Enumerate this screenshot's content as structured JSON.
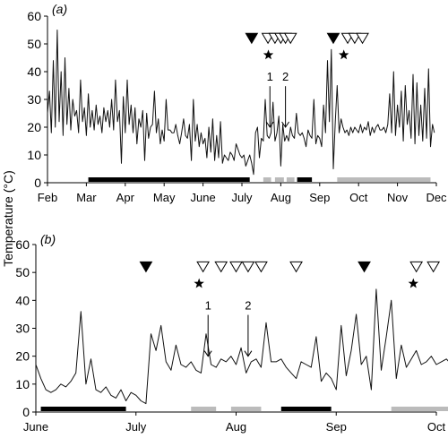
{
  "figure": {
    "ylabel": "Temperature (°C)"
  },
  "chart_data": [
    {
      "type": "line",
      "panel_label": "(a)",
      "ylim": [
        0,
        60
      ],
      "yticks": [
        0,
        10,
        20,
        30,
        40,
        50,
        60
      ],
      "xticklabels": [
        "Feb",
        "Mar",
        "Apr",
        "May",
        "June",
        "July",
        "Aug",
        "Sep",
        "Oct",
        "Nov",
        "Dec"
      ],
      "xrange_months": [
        0,
        10
      ],
      "grid": false,
      "annotations": [
        {
          "text": "1",
          "x": 5.72,
          "arrow_from": 38,
          "arrow_to": 20
        },
        {
          "text": "2",
          "x": 6.12,
          "arrow_from": 38,
          "arrow_to": 20
        }
      ],
      "markers": {
        "filled_triangle": [
          5.25,
          7.35
        ],
        "open_triangle": [
          5.67,
          5.85,
          6.0,
          6.12,
          6.25,
          7.72,
          7.9,
          8.1
        ],
        "star": [
          5.68,
          7.62
        ]
      },
      "bars_black": [
        [
          1.05,
          5.2
        ],
        [
          6.42,
          6.8
        ]
      ],
      "bars_gray": [
        [
          5.55,
          5.75
        ],
        [
          5.85,
          6.08
        ],
        [
          6.15,
          6.35
        ],
        [
          7.45,
          9.85
        ]
      ],
      "series": [
        {
          "x": [
            0.0,
            0.05,
            0.1,
            0.15,
            0.2,
            0.25,
            0.3,
            0.35,
            0.4,
            0.45,
            0.5,
            0.55,
            0.6,
            0.65,
            0.7,
            0.75,
            0.8,
            0.85,
            0.9,
            0.95,
            1.0,
            1.05,
            1.1,
            1.15,
            1.2,
            1.25,
            1.3,
            1.35,
            1.4,
            1.45,
            1.5,
            1.55,
            1.6,
            1.65,
            1.7,
            1.75,
            1.8,
            1.85,
            1.9,
            1.95,
            2.0,
            2.05,
            2.1,
            2.15,
            2.2,
            2.25,
            2.3,
            2.35,
            2.4,
            2.45,
            2.5,
            2.55,
            2.6,
            2.65,
            2.7,
            2.75,
            2.8,
            2.85,
            2.9,
            2.95,
            3.0,
            3.05,
            3.1,
            3.15,
            3.2,
            3.25,
            3.3,
            3.35,
            3.4,
            3.45,
            3.5,
            3.55,
            3.6,
            3.65,
            3.7,
            3.75,
            3.8,
            3.85,
            3.9,
            3.95,
            4.0,
            4.05,
            4.1,
            4.15,
            4.2,
            4.25,
            4.3,
            4.35,
            4.4,
            4.45,
            4.5,
            4.55,
            4.6,
            4.65,
            4.7,
            4.75,
            4.8,
            4.85,
            4.9,
            4.95,
            5.0,
            5.05,
            5.1,
            5.15,
            5.2,
            5.25,
            5.3,
            5.35,
            5.4,
            5.45,
            5.5,
            5.55,
            5.6,
            5.65,
            5.7,
            5.75,
            5.8,
            5.85,
            5.9,
            5.95,
            6.0,
            6.05,
            6.1,
            6.15,
            6.2,
            6.25,
            6.3,
            6.35,
            6.4,
            6.45,
            6.5,
            6.55,
            6.6,
            6.65,
            6.7,
            6.75,
            6.8,
            6.85,
            6.9,
            6.95,
            7.0,
            7.05,
            7.1,
            7.15,
            7.2,
            7.25,
            7.3,
            7.35,
            7.4,
            7.45,
            7.5,
            7.55,
            7.6,
            7.65,
            7.7,
            7.75,
            7.8,
            7.85,
            7.9,
            7.95,
            8.0,
            8.05,
            8.1,
            8.15,
            8.2,
            8.25,
            8.3,
            8.35,
            8.4,
            8.45,
            8.5,
            8.55,
            8.6,
            8.65,
            8.7,
            8.75,
            8.8,
            8.85,
            8.9,
            8.95,
            9.0,
            9.05,
            9.1,
            9.15,
            9.2,
            9.25,
            9.3,
            9.35,
            9.4,
            9.45,
            9.5,
            9.55,
            9.6,
            9.65,
            9.7,
            9.75,
            9.8,
            9.85,
            9.9,
            9.95
          ],
          "y": [
            25,
            33,
            18,
            44,
            20,
            55,
            22,
            40,
            17,
            45,
            21,
            34,
            19,
            30,
            24,
            26,
            18,
            37,
            22,
            27,
            17,
            32,
            20,
            26,
            19,
            28,
            21,
            24,
            18,
            27,
            22,
            26,
            20,
            30,
            19,
            37,
            22,
            26,
            7,
            31,
            18,
            37,
            21,
            28,
            18,
            27,
            14,
            23,
            20,
            26,
            8,
            25,
            16,
            20,
            21,
            33,
            18,
            23,
            14,
            19,
            15,
            30,
            19,
            19,
            18,
            18,
            21,
            17,
            14,
            18,
            23,
            17,
            16,
            21,
            8,
            30,
            15,
            21,
            13,
            18,
            14,
            16,
            9,
            20,
            11,
            23,
            8,
            17,
            9,
            22,
            7,
            10,
            9,
            8,
            11,
            10,
            8,
            14,
            12,
            10,
            9,
            10,
            6,
            8,
            10,
            7,
            3,
            18,
            20,
            9,
            16,
            15,
            30,
            17,
            16,
            18,
            29,
            15,
            18,
            24,
            6,
            21,
            15,
            17,
            15,
            20,
            17,
            16,
            25,
            18,
            17,
            18,
            16,
            13,
            19,
            17,
            16,
            30,
            14,
            17,
            16,
            13,
            28,
            18,
            44,
            22,
            48,
            5,
            22,
            35,
            18,
            23,
            20,
            18,
            19,
            17,
            20,
            18,
            20,
            19,
            18,
            21,
            18,
            20,
            19,
            22,
            17,
            20,
            18,
            20,
            21,
            19,
            19,
            20,
            18,
            21,
            32,
            18,
            40,
            17,
            28,
            20,
            33,
            15,
            35,
            21,
            26,
            16,
            39,
            14,
            36,
            17,
            28,
            15,
            34,
            16,
            41,
            13,
            21,
            18
          ]
        }
      ]
    },
    {
      "type": "line",
      "panel_label": "(b)",
      "ylim": [
        0,
        60
      ],
      "yticks": [
        0,
        10,
        20,
        30,
        40,
        50,
        60
      ],
      "xticklabels": [
        "June",
        "July",
        "Aug",
        "Sep",
        "Oct"
      ],
      "xrange_months": [
        0,
        4
      ],
      "grid": false,
      "annotations": [
        {
          "text": "1",
          "x": 1.72,
          "arrow_from": 38,
          "arrow_to": 20
        },
        {
          "text": "2",
          "x": 2.12,
          "arrow_from": 38,
          "arrow_to": 20
        }
      ],
      "markers": {
        "filled_triangle": [
          1.1,
          3.28
        ],
        "open_triangle": [
          1.67,
          1.85,
          2.0,
          2.12,
          2.25,
          2.6,
          3.8,
          3.97,
          4.25
        ],
        "star": [
          1.63,
          3.77
        ]
      },
      "bars_black": [
        [
          0.05,
          0.9
        ],
        [
          2.45,
          2.95
        ]
      ],
      "bars_gray": [
        [
          1.55,
          1.8
        ],
        [
          1.95,
          2.25
        ],
        [
          3.55,
          4.45
        ]
      ],
      "series": [
        {
          "x": [
            0.0,
            0.05,
            0.1,
            0.15,
            0.2,
            0.25,
            0.3,
            0.35,
            0.4,
            0.45,
            0.5,
            0.55,
            0.6,
            0.65,
            0.7,
            0.75,
            0.8,
            0.85,
            0.9,
            0.95,
            1.0,
            1.05,
            1.1,
            1.15,
            1.2,
            1.25,
            1.3,
            1.35,
            1.4,
            1.45,
            1.5,
            1.55,
            1.6,
            1.65,
            1.7,
            1.75,
            1.8,
            1.85,
            1.9,
            1.95,
            2.0,
            2.05,
            2.1,
            2.15,
            2.2,
            2.25,
            2.3,
            2.35,
            2.4,
            2.45,
            2.5,
            2.55,
            2.6,
            2.65,
            2.7,
            2.75,
            2.8,
            2.85,
            2.9,
            2.95,
            3.0,
            3.05,
            3.1,
            3.15,
            3.2,
            3.25,
            3.3,
            3.35,
            3.4,
            3.45,
            3.5,
            3.55,
            3.6,
            3.65,
            3.7,
            3.75,
            3.8,
            3.85,
            3.9,
            3.95,
            4.0,
            4.05,
            4.1,
            4.15,
            4.2,
            4.25,
            4.3,
            4.35,
            4.4,
            4.45,
            4.5
          ],
          "y": [
            17,
            12,
            8,
            7,
            8,
            10,
            9,
            11,
            14,
            36,
            10,
            19,
            8,
            7,
            9,
            6,
            5,
            8,
            4,
            7,
            6,
            4,
            3,
            28,
            22,
            31,
            18,
            15,
            24,
            17,
            16,
            18,
            15,
            14,
            28,
            17,
            16,
            19,
            18,
            20,
            17,
            23,
            14,
            18,
            19,
            16,
            32,
            18,
            18,
            19,
            16,
            14,
            12,
            18,
            17,
            16,
            27,
            11,
            14,
            12,
            8,
            31,
            13,
            22,
            35,
            17,
            20,
            8,
            44,
            15,
            27,
            40,
            12,
            24,
            16,
            19,
            22,
            17,
            18,
            20,
            17,
            18,
            19,
            17,
            16,
            26,
            17,
            18,
            16,
            17,
            19
          ]
        }
      ]
    }
  ]
}
